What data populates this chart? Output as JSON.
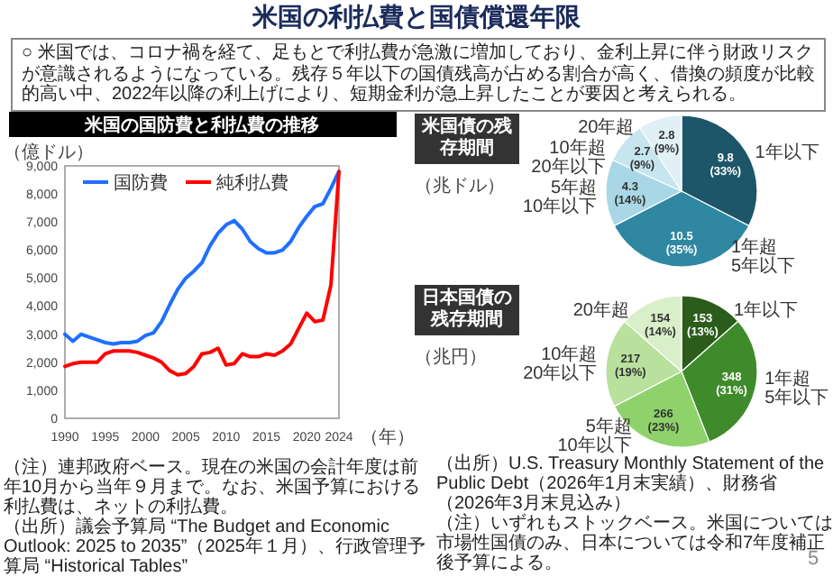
{
  "chart_data": [
    {
      "type": "other",
      "title": "米国の利払費と国債償還年限",
      "annotations": [
        "○ 米国では、コロナ禍を経て、足もとで利払費が急激に増加しており、金利上昇に伴う財政リスクが意識されるようになっている。残存５年以下の国債残高が占める割合が高く、借換の頻度が比較的高い中、2022年以降の利上げにより、短期金利が急上昇したことが要因と考えられる。",
        "5"
      ]
    },
    {
      "type": "line",
      "title": "米国の国防費と利払費の推移",
      "ylabel": "（億ドル）",
      "xlabel": "（年）",
      "x": [
        1990,
        1991,
        1992,
        1993,
        1994,
        1995,
        1996,
        1997,
        1998,
        1999,
        2000,
        2001,
        2002,
        2003,
        2004,
        2005,
        2006,
        2007,
        2008,
        2009,
        2010,
        2011,
        2012,
        2013,
        2014,
        2015,
        2016,
        2017,
        2018,
        2019,
        2020,
        2021,
        2022,
        2023,
        2024
      ],
      "series": [
        {
          "name": "国防費",
          "color": "#1f6fff",
          "values": [
            3000,
            2750,
            3000,
            2900,
            2800,
            2700,
            2650,
            2700,
            2700,
            2750,
            2950,
            3050,
            3450,
            4050,
            4600,
            5000,
            5250,
            5550,
            6150,
            6600,
            6900,
            7050,
            6750,
            6300,
            6050,
            5900,
            5900,
            6000,
            6300,
            6800,
            7200,
            7550,
            7650,
            8200,
            8800
          ]
        },
        {
          "name": "純利払費",
          "color": "#ff0000",
          "values": [
            1850,
            1950,
            2000,
            2000,
            2000,
            2300,
            2400,
            2400,
            2400,
            2350,
            2250,
            2150,
            2000,
            1700,
            1550,
            1600,
            1850,
            2300,
            2350,
            2500,
            1900,
            1950,
            2300,
            2200,
            2200,
            2300,
            2250,
            2400,
            2650,
            3200,
            3750,
            3450,
            3500,
            4750,
            8800
          ]
        }
      ],
      "xlim": [
        1990,
        2024
      ],
      "xticks": [
        1990,
        1995,
        2000,
        2005,
        2010,
        2015,
        2020,
        2024
      ],
      "ylim": [
        0,
        9000
      ],
      "yticks": [
        0,
        {
          "value": 1000,
          "label": "1,000"
        },
        {
          "value": 2000,
          "label": "2,000"
        },
        {
          "value": 3000,
          "label": "3,000"
        },
        {
          "value": 4000,
          "label": "4,000"
        },
        {
          "value": 5000,
          "label": "5,000"
        },
        {
          "value": 6000,
          "label": "6,000"
        },
        {
          "value": 7000,
          "label": "7,000"
        },
        {
          "value": 8000,
          "label": "8,000"
        },
        {
          "value": 9000,
          "label": "9,000"
        }
      ],
      "legend": "top left",
      "marker": "none",
      "line_style": "solid",
      "annotations": [
        "（注）連邦政府ベース。現在の米国の会計年度は前年10月から当年９月まで。なお、米国予算における利払費は、ネットの利払費。",
        "（出所）議会予算局 “The Budget and Economic Outlook: 2025 to 2035”（2025年１月）、行政管理予算局 “Historical Tables”"
      ]
    },
    {
      "type": "pie",
      "title": "米国債の残存期間",
      "subtitle": "（兆ドル）",
      "categories": [
        "1年以下",
        "1年超\n5年以下",
        "5年超\n10年以下",
        "10年超\n20年以下",
        "20年超"
      ],
      "values": [
        9.8,
        10.5,
        4.3,
        2.7,
        2.8
      ],
      "colors": [
        "#1d5668",
        "#2f87a2",
        "#a9d7e6",
        "#c6e5ef",
        "#e0f0f6"
      ],
      "value_labels": [
        "9.8\n(33%)",
        "10.5\n(35%)",
        "4.3\n(14%)",
        "2.7\n(9%)",
        "2.8\n(9%)"
      ]
    },
    {
      "type": "pie",
      "title": "日本国債の残存期間",
      "subtitle": "（兆円）",
      "categories": [
        "1年以下",
        "1年超\n5年以下",
        "5年超\n10年以下",
        "10年超\n20年以下",
        "20年超"
      ],
      "values": [
        153,
        348,
        266,
        217,
        154
      ],
      "colors": [
        "#2b5c1c",
        "#3f8b2b",
        "#8fd26b",
        "#b9e09c",
        "#d9efc9"
      ],
      "value_labels": [
        "153\n(13%)",
        "348\n(31%)",
        "266\n(23%)",
        "217\n(19%)",
        "154\n(14%)"
      ],
      "annotations": [
        "（出所）U.S. Treasury Monthly Statement of the Public Debt（2026年1月末実績）、財務省（2026年3月末見込み）",
        "（注）いずれもストックベース。米国については市場性国債のみ、日本については令和7年度補正後予算による。"
      ]
    }
  ]
}
